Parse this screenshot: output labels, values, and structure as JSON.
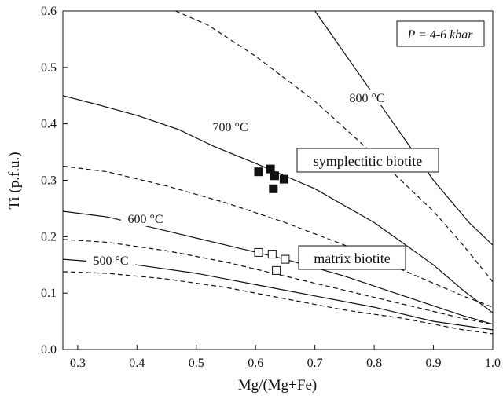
{
  "chart_data": {
    "type": "scatter",
    "xlabel": "Mg/(Mg+Fe)",
    "ylabel": "Ti (p.f.u.)",
    "xlim": [
      0.275,
      1.0
    ],
    "ylim": [
      0.0,
      0.6
    ],
    "x_ticks": [
      "0.3",
      "0.4",
      "0.5",
      "0.6",
      "0.7",
      "0.8",
      "0.9",
      "1.0"
    ],
    "y_ticks": [
      "0.0",
      "0.1",
      "0.2",
      "0.3",
      "0.4",
      "0.5",
      "0.6"
    ],
    "pressure_label": "P = 4-6 kbar",
    "isotherm_labels": [
      {
        "text": "800 °C"
      },
      {
        "text": "700 °C"
      },
      {
        "text": "600 °C"
      },
      {
        "text": "500 °C"
      }
    ],
    "group_labels": {
      "symplectitic": "symplectitic biotite",
      "matrix": "matrix biotite"
    },
    "isotherms": [
      {
        "style": "solid",
        "points": [
          [
            0.275,
            0.45
          ],
          [
            0.33,
            0.435
          ],
          [
            0.4,
            0.415
          ],
          [
            0.47,
            0.39
          ],
          [
            0.53,
            0.36
          ],
          [
            0.6,
            0.33
          ],
          [
            0.7,
            0.285
          ],
          [
            0.8,
            0.225
          ],
          [
            0.9,
            0.15
          ],
          [
            0.95,
            0.105
          ],
          [
            1.0,
            0.065
          ]
        ]
      },
      {
        "style": "solid",
        "points": [
          [
            0.275,
            0.245
          ],
          [
            0.35,
            0.235
          ],
          [
            0.45,
            0.21
          ],
          [
            0.55,
            0.185
          ],
          [
            0.65,
            0.16
          ],
          [
            0.75,
            0.13
          ],
          [
            0.85,
            0.095
          ],
          [
            0.95,
            0.06
          ],
          [
            1.0,
            0.045
          ]
        ]
      },
      {
        "style": "solid",
        "points": [
          [
            0.275,
            0.16
          ],
          [
            0.4,
            0.15
          ],
          [
            0.5,
            0.135
          ],
          [
            0.6,
            0.115
          ],
          [
            0.7,
            0.095
          ],
          [
            0.8,
            0.075
          ],
          [
            0.9,
            0.05
          ],
          [
            1.0,
            0.035
          ]
        ]
      },
      {
        "style": "solid",
        "points": [
          [
            0.7,
            0.6
          ],
          [
            0.78,
            0.48
          ],
          [
            0.85,
            0.375
          ],
          [
            0.9,
            0.3
          ],
          [
            0.96,
            0.225
          ],
          [
            1.0,
            0.185
          ]
        ]
      },
      {
        "style": "dashed",
        "points": [
          [
            0.275,
            0.325
          ],
          [
            0.35,
            0.315
          ],
          [
            0.45,
            0.29
          ],
          [
            0.55,
            0.26
          ],
          [
            0.65,
            0.225
          ],
          [
            0.75,
            0.185
          ],
          [
            0.85,
            0.14
          ],
          [
            0.95,
            0.095
          ],
          [
            1.0,
            0.075
          ]
        ]
      },
      {
        "style": "dashed",
        "points": [
          [
            0.275,
            0.195
          ],
          [
            0.35,
            0.19
          ],
          [
            0.45,
            0.175
          ],
          [
            0.55,
            0.155
          ],
          [
            0.65,
            0.13
          ],
          [
            0.75,
            0.105
          ],
          [
            0.85,
            0.08
          ],
          [
            0.95,
            0.055
          ],
          [
            1.0,
            0.045
          ]
        ]
      },
      {
        "style": "dashed",
        "points": [
          [
            0.275,
            0.138
          ],
          [
            0.35,
            0.135
          ],
          [
            0.45,
            0.125
          ],
          [
            0.55,
            0.11
          ],
          [
            0.65,
            0.09
          ],
          [
            0.75,
            0.07
          ],
          [
            0.85,
            0.055
          ],
          [
            0.95,
            0.035
          ],
          [
            1.0,
            0.028
          ]
        ]
      },
      {
        "style": "dashed",
        "points": [
          [
            0.465,
            0.6
          ],
          [
            0.52,
            0.575
          ],
          [
            0.6,
            0.52
          ],
          [
            0.7,
            0.44
          ],
          [
            0.8,
            0.345
          ],
          [
            0.9,
            0.245
          ],
          [
            0.95,
            0.185
          ],
          [
            1.0,
            0.12
          ]
        ]
      }
    ],
    "series": [
      {
        "name": "symplectitic biotite",
        "marker": "filled-square",
        "color": "#111111",
        "points": [
          [
            0.605,
            0.315
          ],
          [
            0.625,
            0.32
          ],
          [
            0.632,
            0.308
          ],
          [
            0.648,
            0.302
          ],
          [
            0.63,
            0.285
          ]
        ]
      },
      {
        "name": "matrix biotite",
        "marker": "open-square",
        "color": "#ffffff",
        "points": [
          [
            0.605,
            0.172
          ],
          [
            0.628,
            0.169
          ],
          [
            0.65,
            0.16
          ],
          [
            0.635,
            0.14
          ]
        ]
      }
    ]
  }
}
